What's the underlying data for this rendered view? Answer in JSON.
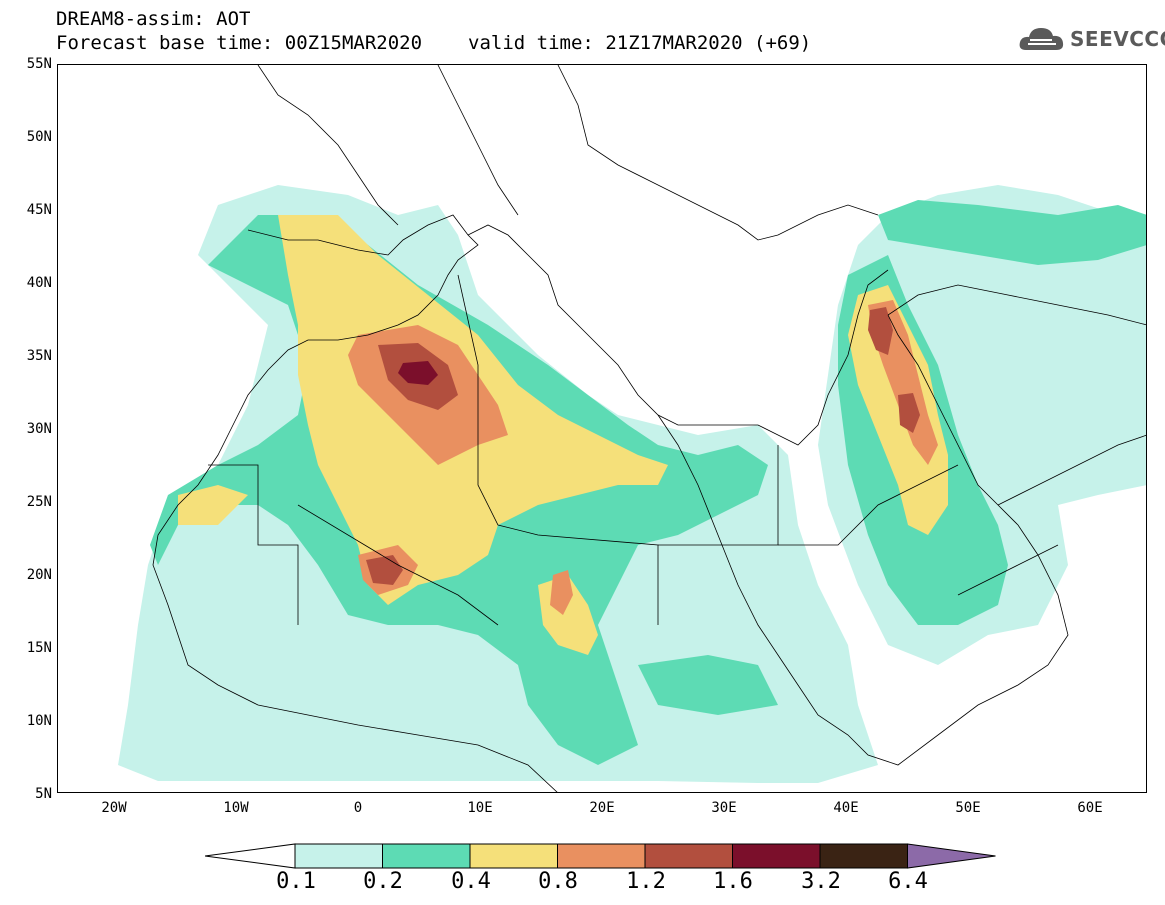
{
  "header": {
    "title_line1": "DREAM8-assim: AOT",
    "title_forecast": "Forecast base time: 00Z15MAR2020",
    "title_valid": "valid time: 21Z17MAR2020 (+69)",
    "logo_text": "SEEVCCC"
  },
  "map": {
    "lat_labels": [
      "55N",
      "50N",
      "45N",
      "40N",
      "35N",
      "30N",
      "25N",
      "20N",
      "15N",
      "10N",
      "5N"
    ],
    "lon_labels": [
      "20W",
      "10W",
      "0",
      "10E",
      "20E",
      "30E",
      "40E",
      "50E",
      "60E"
    ]
  },
  "colorbar": {
    "labels": [
      "0.1",
      "0.2",
      "0.4",
      "0.8",
      "1.2",
      "1.6",
      "3.2",
      "6.4"
    ],
    "colors": [
      "#c6f2ea",
      "#5ddbb4",
      "#f5e07a",
      "#e99060",
      "#b24f3e",
      "#7b0f2b",
      "#3a2314",
      "#8c6aa8"
    ],
    "under_color": "#ffffff"
  }
}
